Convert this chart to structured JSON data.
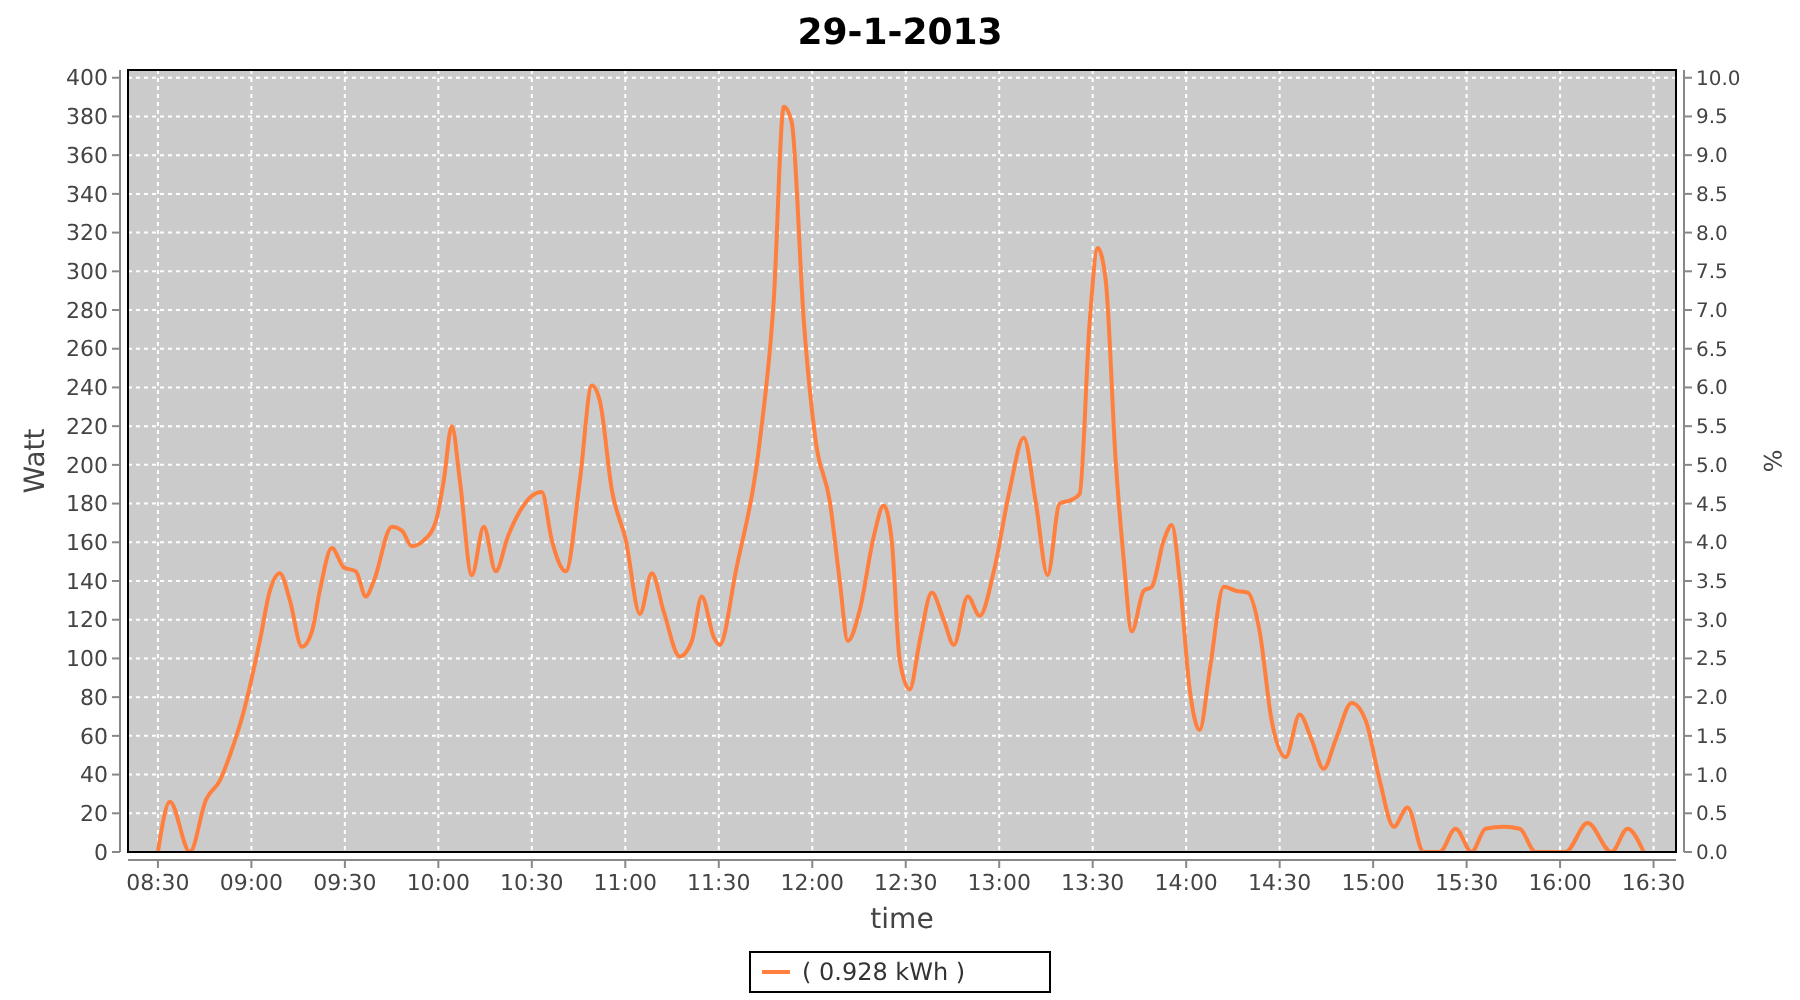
{
  "chart_data": {
    "type": "line",
    "title": "29-1-2013",
    "xlabel": "time",
    "ylabel": "Watt",
    "y2label": "%",
    "xlim": [
      8.34,
      16.62
    ],
    "xticks": [
      {
        "value": 8.5,
        "label": "08:30"
      },
      {
        "value": 9,
        "label": "09:00"
      },
      {
        "value": 9.5,
        "label": "09:30"
      },
      {
        "value": 10,
        "label": "10:00"
      },
      {
        "value": 10.5,
        "label": "10:30"
      },
      {
        "value": 11,
        "label": "11:00"
      },
      {
        "value": 11.5,
        "label": "11:30"
      },
      {
        "value": 12,
        "label": "12:00"
      },
      {
        "value": 12.5,
        "label": "12:30"
      },
      {
        "value": 13,
        "label": "13:00"
      },
      {
        "value": 13.5,
        "label": "13:30"
      },
      {
        "value": 14,
        "label": "14:00"
      },
      {
        "value": 14.5,
        "label": "14:30"
      },
      {
        "value": 15,
        "label": "15:00"
      },
      {
        "value": 15.5,
        "label": "15:30"
      },
      {
        "value": 16,
        "label": "16:00"
      },
      {
        "value": 16.5,
        "label": "16:30"
      }
    ],
    "ylim": [
      0,
      404
    ],
    "yticks": [
      0,
      20,
      40,
      60,
      80,
      100,
      120,
      140,
      160,
      180,
      200,
      220,
      240,
      260,
      280,
      300,
      320,
      340,
      360,
      380,
      400
    ],
    "y2lim": [
      0,
      10.1
    ],
    "y2ticks": [
      {
        "value": 0,
        "label": "0.0"
      },
      0.5,
      {
        "value": 1,
        "label": "1.0"
      },
      1.5,
      {
        "value": 2,
        "label": "2.0"
      },
      2.5,
      {
        "value": 3,
        "label": "3.0"
      },
      3.5,
      {
        "value": 4,
        "label": "4.0"
      },
      4.5,
      {
        "value": 5,
        "label": "5.0"
      },
      5.5,
      {
        "value": 6,
        "label": "6.0"
      },
      6.5,
      {
        "value": 7,
        "label": "7.0"
      },
      7.5,
      {
        "value": 8,
        "label": "8.0"
      },
      8.5,
      {
        "value": 9,
        "label": "9.0"
      },
      9.5,
      {
        "value": 10,
        "label": "10.0"
      }
    ],
    "grid": true,
    "legend": "bottom",
    "marker": "none",
    "line_style": "solid",
    "series": [
      {
        "name": "( 0.928 kWh )",
        "color": "#ff7f3f",
        "x": [
          8.5,
          8.564,
          8.671,
          8.757,
          8.832,
          8.885,
          8.96,
          9.045,
          9.099,
          9.152,
          9.206,
          9.27,
          9.324,
          9.366,
          9.43,
          9.495,
          9.559,
          9.612,
          9.655,
          9.751,
          9.805,
          9.858,
          9.922,
          9.987,
          10.029,
          10.072,
          10.115,
          10.179,
          10.243,
          10.307,
          10.372,
          10.436,
          10.5,
          10.553,
          10.607,
          10.682,
          10.757,
          10.821,
          10.864,
          10.928,
          11.003,
          11.078,
          11.142,
          11.206,
          11.291,
          11.356,
          11.409,
          11.473,
          11.505,
          11.591,
          11.719,
          11.794,
          11.848,
          11.89,
          11.955,
          12.019,
          12.094,
          12.147,
          12.19,
          12.254,
          12.329,
          12.382,
          12.425,
          12.468,
          12.521,
          12.575,
          12.639,
          12.703,
          12.757,
          12.832,
          12.896,
          12.971,
          13.056,
          13.131,
          13.195,
          13.259,
          13.323,
          13.388,
          13.43,
          13.484,
          13.527,
          13.57,
          13.623,
          13.666,
          13.709,
          13.773,
          13.816,
          13.88,
          13.923,
          13.966,
          14.019,
          14.072,
          14.126,
          14.201,
          14.265,
          14.329,
          14.393,
          14.457,
          14.532,
          14.607,
          14.671,
          14.735,
          14.8,
          14.885,
          14.96,
          15.035,
          15.11,
          15.184,
          15.27,
          15.356,
          15.441,
          15.527,
          15.601,
          15.698,
          15.784,
          15.869,
          16.029,
          16.147,
          16.275,
          16.361,
          16.447
        ],
        "values": [
          0,
          26,
          0,
          27,
          37,
          50,
          73,
          109,
          135,
          144,
          130,
          106,
          114,
          135,
          157,
          147,
          145,
          132,
          140,
          168,
          166,
          158,
          161,
          171,
          192,
          220,
          192,
          143,
          168,
          145,
          163,
          176,
          184,
          186,
          161,
          145,
          192,
          241,
          233,
          187,
          161,
          123,
          144,
          124,
          101,
          109,
          132,
          111,
          107,
          145,
          212,
          285,
          385,
          377,
          274,
          212,
          181,
          140,
          109,
          125,
          163,
          179,
          161,
          99,
          84,
          109,
          134,
          120,
          107,
          132,
          122,
          145,
          187,
          214,
          181,
          143,
          180,
          182,
          185,
          274,
          312,
          295,
          202,
          151,
          114,
          135,
          137,
          161,
          169,
          140,
          84,
          63,
          94,
          137,
          135,
          134,
          114,
          68,
          49,
          71,
          58,
          43,
          58,
          77,
          68,
          37,
          13,
          23,
          0,
          0,
          12,
          0,
          12,
          13,
          12,
          0,
          0,
          15,
          0,
          12,
          0
        ]
      }
    ]
  }
}
